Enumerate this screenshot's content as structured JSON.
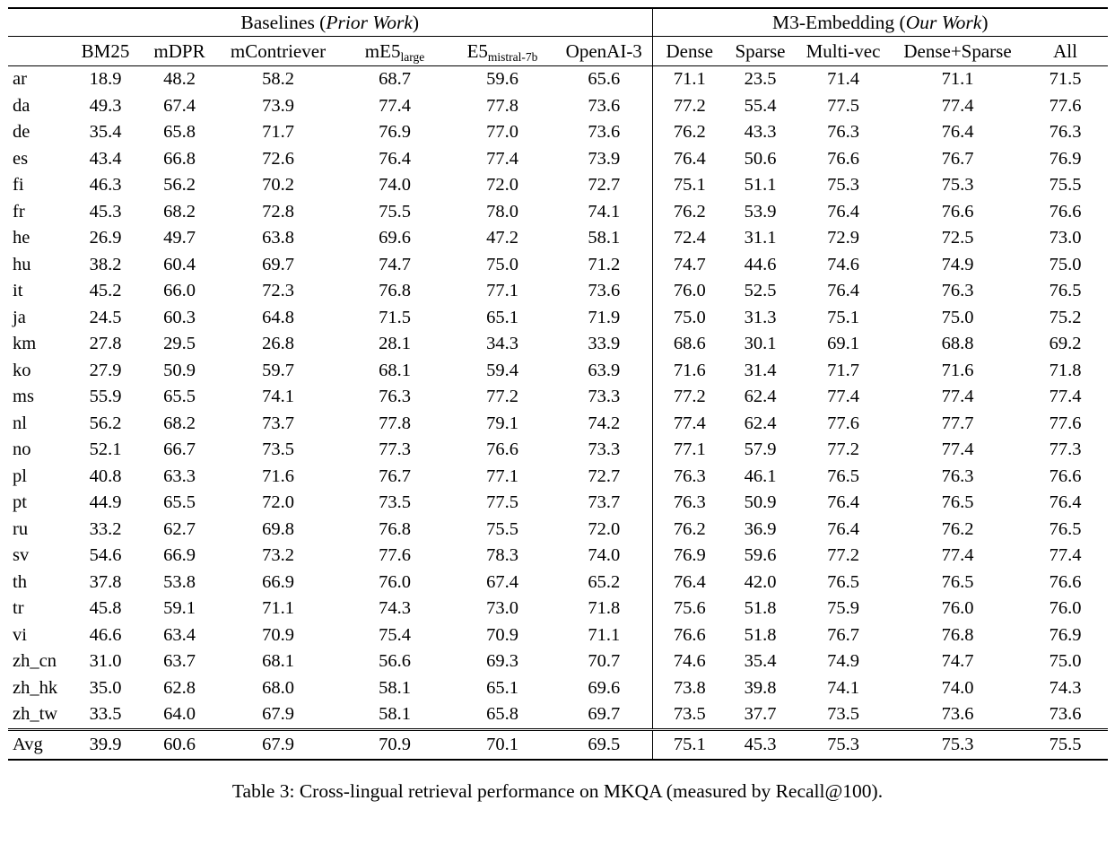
{
  "table": {
    "groups": {
      "left": {
        "pre": "Baselines (",
        "italic": "Prior Work",
        "post": ")"
      },
      "right": {
        "pre": "M3-Embedding (",
        "italic": "Our Work",
        "post": ")"
      }
    },
    "columns": [
      {
        "label": "BM25"
      },
      {
        "label": "mDPR"
      },
      {
        "label": "mContriever"
      },
      {
        "label": "mE5",
        "sub": "large"
      },
      {
        "label": "E5",
        "sub": "mistral-7b"
      },
      {
        "label": "OpenAI-3"
      },
      {
        "label": "Dense"
      },
      {
        "label": "Sparse"
      },
      {
        "label": "Multi-vec"
      },
      {
        "label": "Dense+Sparse"
      },
      {
        "label": "All"
      }
    ],
    "rows": [
      {
        "lang": "ar",
        "values": [
          "18.9",
          "48.2",
          "58.2",
          "68.7",
          "59.6",
          "65.6",
          "71.1",
          "23.5",
          "71.4",
          "71.1",
          "71.5"
        ],
        "bold": [
          10
        ]
      },
      {
        "lang": "da",
        "values": [
          "49.3",
          "67.4",
          "73.9",
          "77.4",
          "77.8",
          "73.6",
          "77.2",
          "55.4",
          "77.5",
          "77.4",
          "77.6"
        ],
        "bold": [
          4
        ]
      },
      {
        "lang": "de",
        "values": [
          "35.4",
          "65.8",
          "71.7",
          "76.9",
          "77.0",
          "73.6",
          "76.2",
          "43.3",
          "76.3",
          "76.4",
          "76.3"
        ],
        "bold": [
          4
        ]
      },
      {
        "lang": "es",
        "values": [
          "43.4",
          "66.8",
          "72.6",
          "76.4",
          "77.4",
          "73.9",
          "76.4",
          "50.6",
          "76.6",
          "76.7",
          "76.9"
        ],
        "bold": [
          4
        ]
      },
      {
        "lang": "fi",
        "values": [
          "46.3",
          "56.2",
          "70.2",
          "74.0",
          "72.0",
          "72.7",
          "75.1",
          "51.1",
          "75.3",
          "75.3",
          "75.5"
        ],
        "bold": [
          10
        ]
      },
      {
        "lang": "fr",
        "values": [
          "45.3",
          "68.2",
          "72.8",
          "75.5",
          "78.0",
          "74.1",
          "76.2",
          "53.9",
          "76.4",
          "76.6",
          "76.6"
        ],
        "bold": [
          4
        ]
      },
      {
        "lang": "he",
        "values": [
          "26.9",
          "49.7",
          "63.8",
          "69.6",
          "47.2",
          "58.1",
          "72.4",
          "31.1",
          "72.9",
          "72.5",
          "73.0"
        ],
        "bold": [
          10
        ]
      },
      {
        "lang": "hu",
        "values": [
          "38.2",
          "60.4",
          "69.7",
          "74.7",
          "75.0",
          "71.2",
          "74.7",
          "44.6",
          "74.6",
          "74.9",
          "75.0"
        ],
        "bold": [
          4,
          10
        ]
      },
      {
        "lang": "it",
        "values": [
          "45.2",
          "66.0",
          "72.3",
          "76.8",
          "77.1",
          "73.6",
          "76.0",
          "52.5",
          "76.4",
          "76.3",
          "76.5"
        ],
        "bold": [
          4
        ]
      },
      {
        "lang": "ja",
        "values": [
          "24.5",
          "60.3",
          "64.8",
          "71.5",
          "65.1",
          "71.9",
          "75.0",
          "31.3",
          "75.1",
          "75.0",
          "75.2"
        ],
        "bold": [
          10
        ]
      },
      {
        "lang": "km",
        "values": [
          "27.8",
          "29.5",
          "26.8",
          "28.1",
          "34.3",
          "33.9",
          "68.6",
          "30.1",
          "69.1",
          "68.8",
          "69.2"
        ],
        "bold": [
          10
        ]
      },
      {
        "lang": "ko",
        "values": [
          "27.9",
          "50.9",
          "59.7",
          "68.1",
          "59.4",
          "63.9",
          "71.6",
          "31.4",
          "71.7",
          "71.6",
          "71.8"
        ],
        "bold": [
          10
        ]
      },
      {
        "lang": "ms",
        "values": [
          "55.9",
          "65.5",
          "74.1",
          "76.3",
          "77.2",
          "73.3",
          "77.2",
          "62.4",
          "77.4",
          "77.4",
          "77.4"
        ],
        "bold": [
          8,
          9,
          10
        ]
      },
      {
        "lang": "nl",
        "values": [
          "56.2",
          "68.2",
          "73.7",
          "77.8",
          "79.1",
          "74.2",
          "77.4",
          "62.4",
          "77.6",
          "77.7",
          "77.6"
        ],
        "bold": [
          4
        ]
      },
      {
        "lang": "no",
        "values": [
          "52.1",
          "66.7",
          "73.5",
          "77.3",
          "76.6",
          "73.3",
          "77.1",
          "57.9",
          "77.2",
          "77.4",
          "77.3"
        ],
        "bold": [
          9
        ]
      },
      {
        "lang": "pl",
        "values": [
          "40.8",
          "63.3",
          "71.6",
          "76.7",
          "77.1",
          "72.7",
          "76.3",
          "46.1",
          "76.5",
          "76.3",
          "76.6"
        ],
        "bold": [
          4
        ]
      },
      {
        "lang": "pt",
        "values": [
          "44.9",
          "65.5",
          "72.0",
          "73.5",
          "77.5",
          "73.7",
          "76.3",
          "50.9",
          "76.4",
          "76.5",
          "76.4"
        ],
        "bold": [
          4
        ]
      },
      {
        "lang": "ru",
        "values": [
          "33.2",
          "62.7",
          "69.8",
          "76.8",
          "75.5",
          "72.0",
          "76.2",
          "36.9",
          "76.4",
          "76.2",
          "76.5"
        ],
        "bold": [
          3
        ]
      },
      {
        "lang": "sv",
        "values": [
          "54.6",
          "66.9",
          "73.2",
          "77.6",
          "78.3",
          "74.0",
          "76.9",
          "59.6",
          "77.2",
          "77.4",
          "77.4"
        ],
        "bold": [
          4
        ]
      },
      {
        "lang": "th",
        "values": [
          "37.8",
          "53.8",
          "66.9",
          "76.0",
          "67.4",
          "65.2",
          "76.4",
          "42.0",
          "76.5",
          "76.5",
          "76.6"
        ],
        "bold": [
          10
        ]
      },
      {
        "lang": "tr",
        "values": [
          "45.8",
          "59.1",
          "71.1",
          "74.3",
          "73.0",
          "71.8",
          "75.6",
          "51.8",
          "75.9",
          "76.0",
          "76.0"
        ],
        "bold": [
          9,
          10
        ]
      },
      {
        "lang": "vi",
        "values": [
          "46.6",
          "63.4",
          "70.9",
          "75.4",
          "70.9",
          "71.1",
          "76.6",
          "51.8",
          "76.7",
          "76.8",
          "76.9"
        ],
        "bold": [
          10
        ]
      },
      {
        "lang": "zh_cn",
        "values": [
          "31.0",
          "63.7",
          "68.1",
          "56.6",
          "69.3",
          "70.7",
          "74.6",
          "35.4",
          "74.9",
          "74.7",
          "75.0"
        ],
        "bold": [
          10
        ]
      },
      {
        "lang": "zh_hk",
        "values": [
          "35.0",
          "62.8",
          "68.0",
          "58.1",
          "65.1",
          "69.6",
          "73.8",
          "39.8",
          "74.1",
          "74.0",
          "74.3"
        ],
        "bold": [
          10
        ]
      },
      {
        "lang": "zh_tw",
        "values": [
          "33.5",
          "64.0",
          "67.9",
          "58.1",
          "65.8",
          "69.7",
          "73.5",
          "37.7",
          "73.5",
          "73.6",
          "73.6"
        ],
        "bold": [
          9,
          10
        ]
      }
    ],
    "avg_row": {
      "lang": "Avg",
      "values": [
        "39.9",
        "60.6",
        "67.9",
        "70.9",
        "70.1",
        "69.5",
        "75.1",
        "45.3",
        "75.3",
        "75.3",
        "75.5"
      ],
      "bold": [
        10
      ]
    }
  },
  "caption": "Table 3: Cross-lingual retrieval performance on MKQA (measured by Recall@100)."
}
